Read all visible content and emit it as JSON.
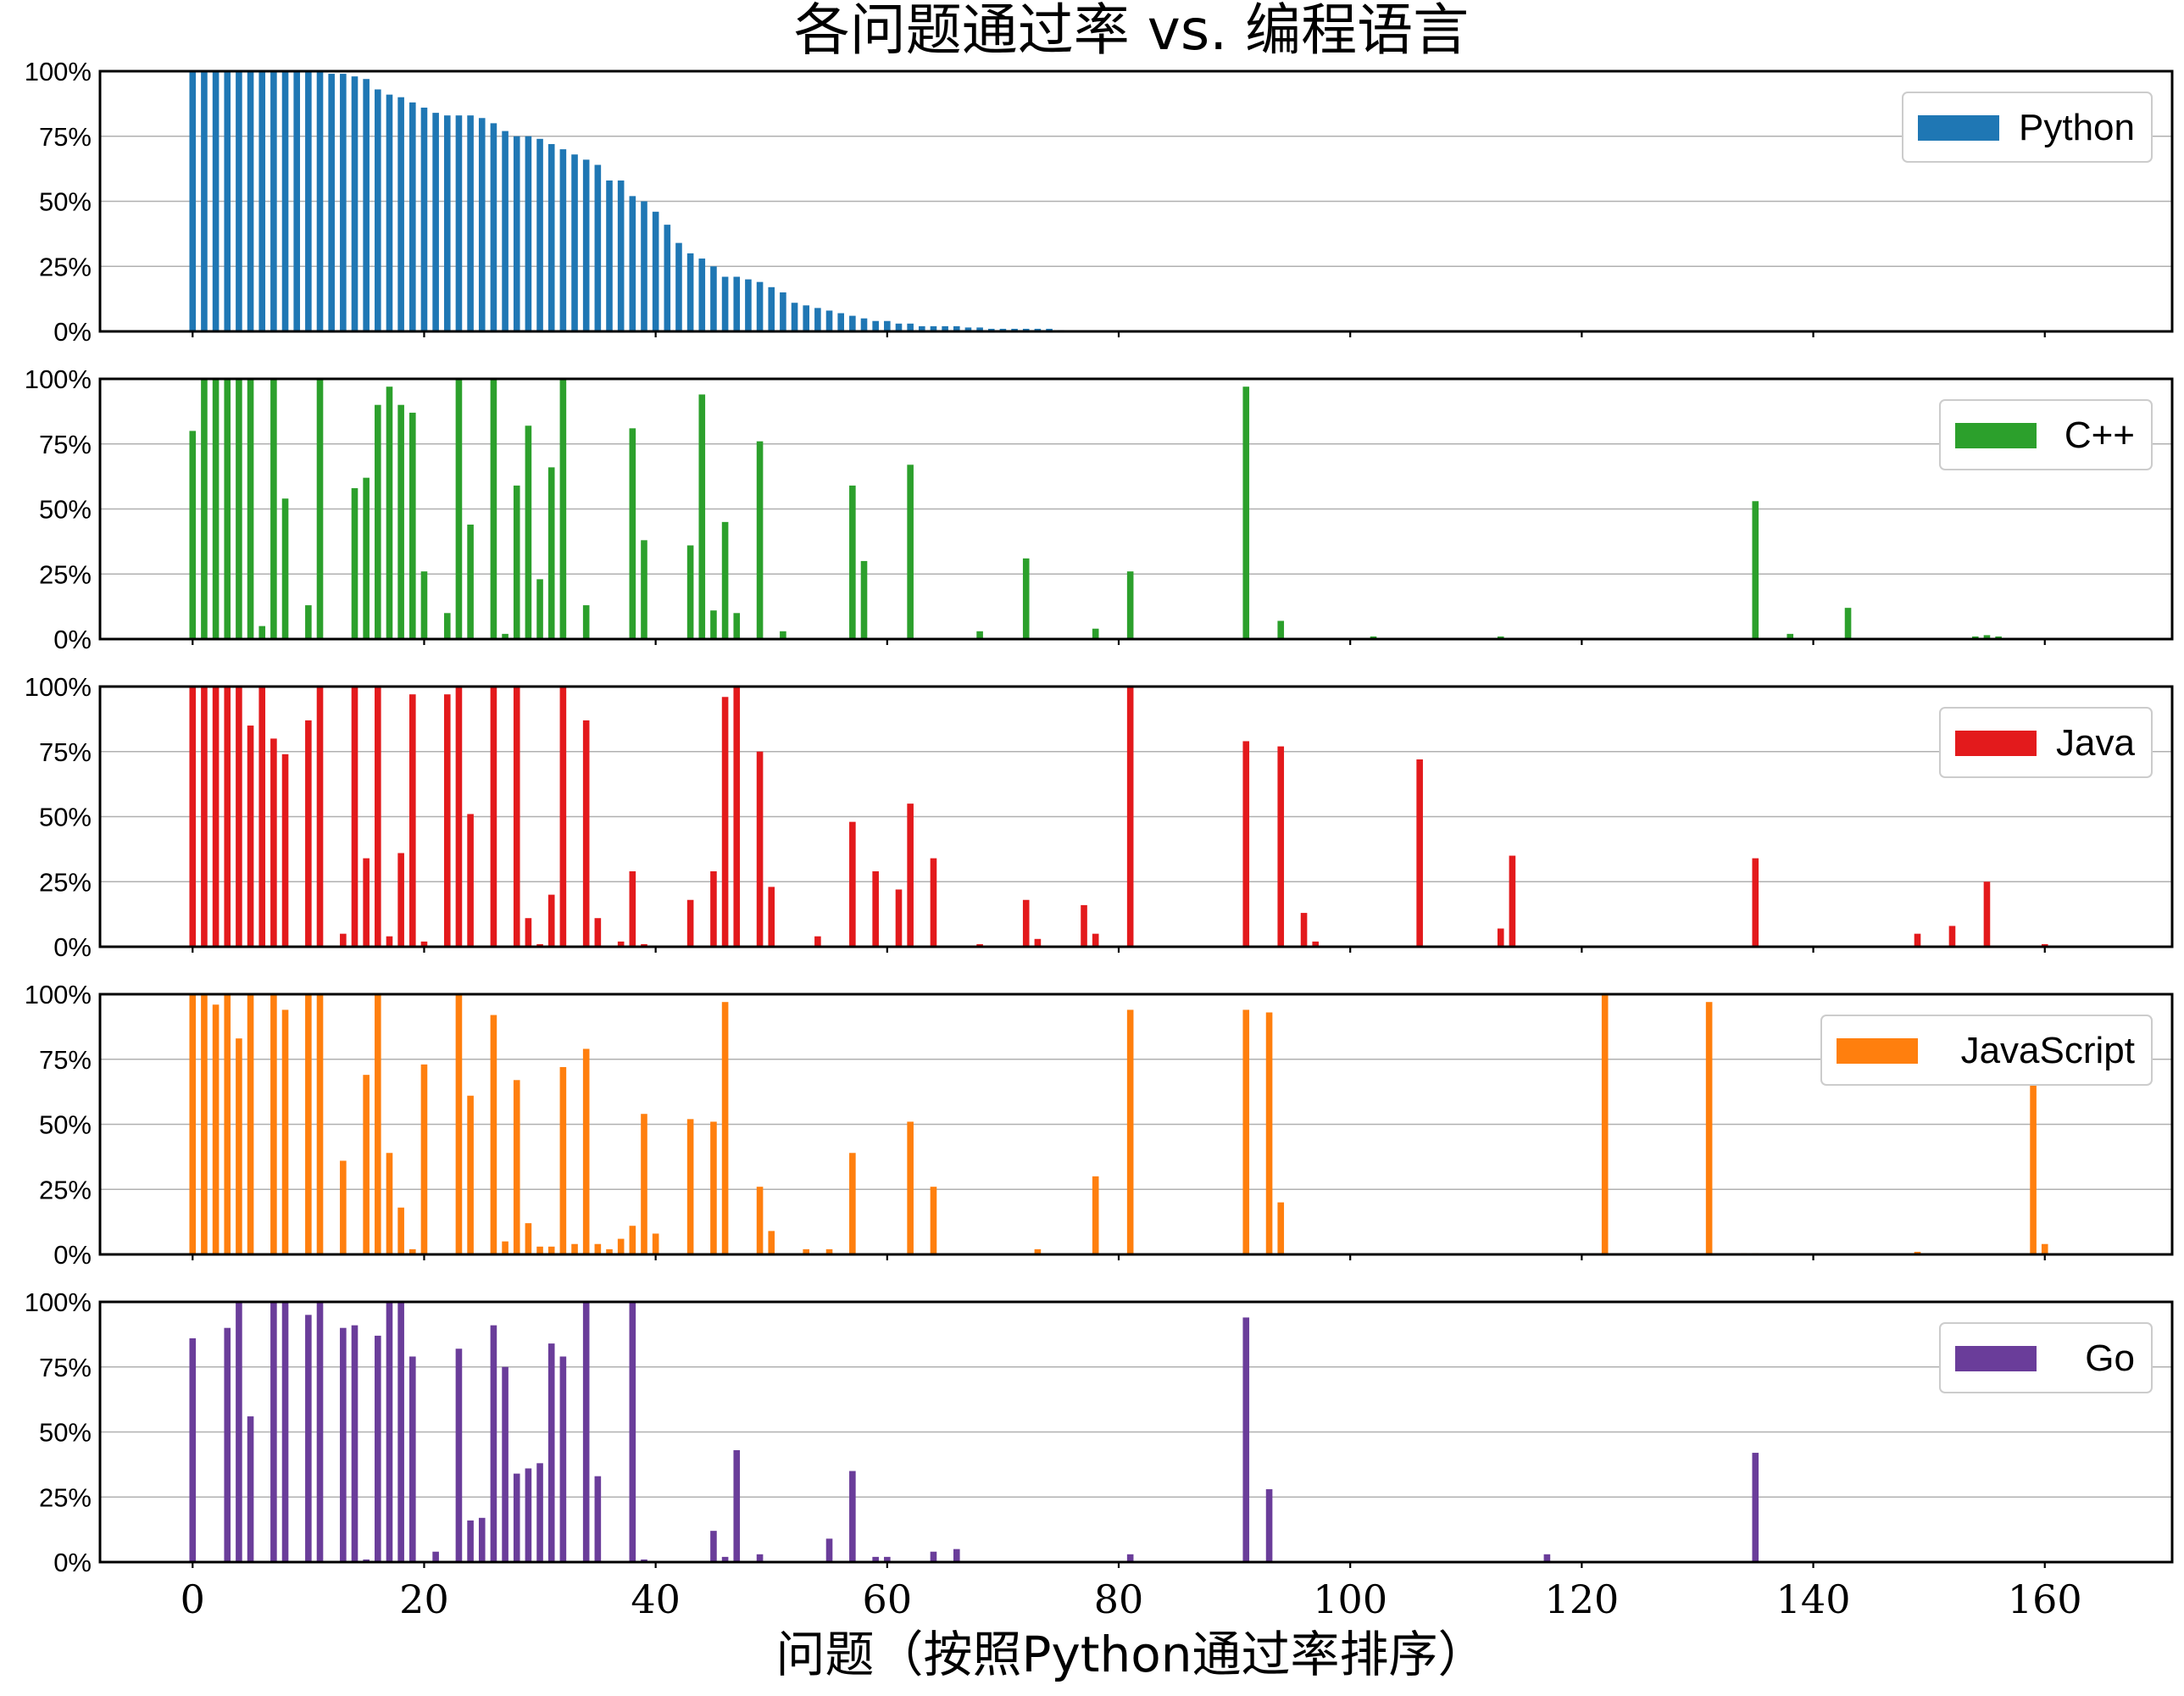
{
  "chart_data": {
    "type": "bar",
    "title": "各问题通过率 vs. 编程语言",
    "xlabel": "问题（按照Python通过率排序）",
    "ylabel": "",
    "xlim": [
      -8,
      171
    ],
    "ylim": [
      0,
      1
    ],
    "xticks": [
      0,
      20,
      40,
      60,
      80,
      100,
      120,
      140,
      160
    ],
    "xtick_labels": [
      "0",
      "20",
      "40",
      "60",
      "80",
      "100",
      "120",
      "140",
      "160"
    ],
    "yticks": [
      0,
      0.25,
      0.5,
      0.75,
      1.0
    ],
    "ytick_labels": [
      "0%",
      "25%",
      "50%",
      "75%",
      "100%"
    ],
    "grid": "horizontal",
    "legend_position": "upper right",
    "series": [
      {
        "name": "Python",
        "color": "#1f77b4",
        "points": [
          [
            0,
            1
          ],
          [
            1,
            1
          ],
          [
            2,
            1
          ],
          [
            3,
            1
          ],
          [
            4,
            1
          ],
          [
            5,
            1
          ],
          [
            6,
            1
          ],
          [
            7,
            1
          ],
          [
            8,
            1
          ],
          [
            9,
            1
          ],
          [
            10,
            1
          ],
          [
            11,
            1
          ],
          [
            12,
            0.99
          ],
          [
            13,
            0.99
          ],
          [
            14,
            0.98
          ],
          [
            15,
            0.97
          ],
          [
            16,
            0.93
          ],
          [
            17,
            0.91
          ],
          [
            18,
            0.9
          ],
          [
            19,
            0.88
          ],
          [
            20,
            0.86
          ],
          [
            21,
            0.84
          ],
          [
            22,
            0.83
          ],
          [
            23,
            0.83
          ],
          [
            24,
            0.83
          ],
          [
            25,
            0.82
          ],
          [
            26,
            0.8
          ],
          [
            27,
            0.77
          ],
          [
            28,
            0.75
          ],
          [
            29,
            0.75
          ],
          [
            30,
            0.74
          ],
          [
            31,
            0.72
          ],
          [
            32,
            0.7
          ],
          [
            33,
            0.68
          ],
          [
            34,
            0.66
          ],
          [
            35,
            0.64
          ],
          [
            36,
            0.58
          ],
          [
            37,
            0.58
          ],
          [
            38,
            0.52
          ],
          [
            39,
            0.5
          ],
          [
            40,
            0.46
          ],
          [
            41,
            0.41
          ],
          [
            42,
            0.34
          ],
          [
            43,
            0.3
          ],
          [
            44,
            0.28
          ],
          [
            45,
            0.25
          ],
          [
            46,
            0.21
          ],
          [
            47,
            0.21
          ],
          [
            48,
            0.2
          ],
          [
            49,
            0.19
          ],
          [
            50,
            0.17
          ],
          [
            51,
            0.15
          ],
          [
            52,
            0.11
          ],
          [
            53,
            0.1
          ],
          [
            54,
            0.09
          ],
          [
            55,
            0.08
          ],
          [
            56,
            0.07
          ],
          [
            57,
            0.06
          ],
          [
            58,
            0.05
          ],
          [
            59,
            0.04
          ],
          [
            60,
            0.04
          ],
          [
            61,
            0.03
          ],
          [
            62,
            0.03
          ],
          [
            63,
            0.02
          ],
          [
            64,
            0.02
          ],
          [
            65,
            0.02
          ],
          [
            66,
            0.02
          ],
          [
            67,
            0.015
          ],
          [
            68,
            0.015
          ],
          [
            69,
            0.01
          ],
          [
            70,
            0.01
          ],
          [
            71,
            0.01
          ],
          [
            72,
            0.01
          ],
          [
            73,
            0.01
          ],
          [
            74,
            0.01
          ],
          [
            75,
            0.005
          ]
        ]
      },
      {
        "name": "C++",
        "color": "#2ca02c",
        "points": [
          [
            0,
            0.8
          ],
          [
            1,
            1
          ],
          [
            2,
            1
          ],
          [
            3,
            1
          ],
          [
            4,
            1
          ],
          [
            5,
            1
          ],
          [
            6,
            0.05
          ],
          [
            7,
            1
          ],
          [
            8,
            0.54
          ],
          [
            10,
            0.13
          ],
          [
            11,
            1
          ],
          [
            14,
            0.58
          ],
          [
            15,
            0.62
          ],
          [
            16,
            0.9
          ],
          [
            17,
            0.97
          ],
          [
            18,
            0.9
          ],
          [
            19,
            0.87
          ],
          [
            20,
            0.26
          ],
          [
            22,
            0.1
          ],
          [
            23,
            1
          ],
          [
            24,
            0.44
          ],
          [
            26,
            1
          ],
          [
            27,
            0.02
          ],
          [
            28,
            0.59
          ],
          [
            29,
            0.82
          ],
          [
            30,
            0.23
          ],
          [
            31,
            0.66
          ],
          [
            32,
            1
          ],
          [
            34,
            0.13
          ],
          [
            38,
            0.81
          ],
          [
            39,
            0.38
          ],
          [
            43,
            0.36
          ],
          [
            44,
            0.94
          ],
          [
            45,
            0.11
          ],
          [
            46,
            0.45
          ],
          [
            47,
            0.1
          ],
          [
            49,
            0.76
          ],
          [
            51,
            0.03
          ],
          [
            57,
            0.59
          ],
          [
            58,
            0.3
          ],
          [
            62,
            0.67
          ],
          [
            68,
            0.03
          ],
          [
            72,
            0.31
          ],
          [
            78,
            0.04
          ],
          [
            81,
            0.26
          ],
          [
            91,
            0.97
          ],
          [
            94,
            0.07
          ],
          [
            102,
            0.01
          ],
          [
            113,
            0.01
          ],
          [
            135,
            0.53
          ],
          [
            138,
            0.02
          ],
          [
            143,
            0.12
          ],
          [
            154,
            0.01
          ],
          [
            155,
            0.015
          ],
          [
            156,
            0.01
          ]
        ]
      },
      {
        "name": "Java",
        "color": "#e31a1c",
        "points": [
          [
            0,
            1
          ],
          [
            1,
            1
          ],
          [
            2,
            1
          ],
          [
            3,
            1
          ],
          [
            4,
            1
          ],
          [
            5,
            0.85
          ],
          [
            6,
            1
          ],
          [
            7,
            0.8
          ],
          [
            8,
            0.74
          ],
          [
            10,
            0.87
          ],
          [
            11,
            1
          ],
          [
            13,
            0.05
          ],
          [
            14,
            1
          ],
          [
            15,
            0.34
          ],
          [
            16,
            1
          ],
          [
            17,
            0.04
          ],
          [
            18,
            0.36
          ],
          [
            19,
            0.97
          ],
          [
            20,
            0.02
          ],
          [
            22,
            0.97
          ],
          [
            23,
            1
          ],
          [
            24,
            0.51
          ],
          [
            26,
            1
          ],
          [
            28,
            1
          ],
          [
            29,
            0.11
          ],
          [
            30,
            0.01
          ],
          [
            31,
            0.2
          ],
          [
            32,
            1
          ],
          [
            34,
            0.87
          ],
          [
            35,
            0.11
          ],
          [
            37,
            0.02
          ],
          [
            38,
            0.29
          ],
          [
            39,
            0.01
          ],
          [
            43,
            0.18
          ],
          [
            45,
            0.29
          ],
          [
            46,
            0.96
          ],
          [
            47,
            1
          ],
          [
            49,
            0.75
          ],
          [
            50,
            0.23
          ],
          [
            54,
            0.04
          ],
          [
            57,
            0.48
          ],
          [
            59,
            0.29
          ],
          [
            61,
            0.22
          ],
          [
            62,
            0.55
          ],
          [
            64,
            0.34
          ],
          [
            68,
            0.01
          ],
          [
            72,
            0.18
          ],
          [
            73,
            0.03
          ],
          [
            77,
            0.16
          ],
          [
            78,
            0.05
          ],
          [
            81,
            1
          ],
          [
            91,
            0.79
          ],
          [
            94,
            0.77
          ],
          [
            96,
            0.13
          ],
          [
            97,
            0.02
          ],
          [
            106,
            0.72
          ],
          [
            113,
            0.07
          ],
          [
            114,
            0.35
          ],
          [
            135,
            0.34
          ],
          [
            149,
            0.05
          ],
          [
            152,
            0.08
          ],
          [
            155,
            0.25
          ],
          [
            160,
            0.01
          ]
        ]
      },
      {
        "name": "JavaScript",
        "color": "#ff7f0e",
        "points": [
          [
            0,
            1
          ],
          [
            1,
            1
          ],
          [
            2,
            0.96
          ],
          [
            3,
            1
          ],
          [
            4,
            0.83
          ],
          [
            5,
            1
          ],
          [
            7,
            1
          ],
          [
            8,
            0.94
          ],
          [
            10,
            1
          ],
          [
            11,
            1
          ],
          [
            13,
            0.36
          ],
          [
            15,
            0.69
          ],
          [
            16,
            1
          ],
          [
            17,
            0.39
          ],
          [
            18,
            0.18
          ],
          [
            19,
            0.02
          ],
          [
            20,
            0.73
          ],
          [
            23,
            1
          ],
          [
            24,
            0.61
          ],
          [
            26,
            0.92
          ],
          [
            27,
            0.05
          ],
          [
            28,
            0.67
          ],
          [
            29,
            0.12
          ],
          [
            30,
            0.03
          ],
          [
            31,
            0.03
          ],
          [
            32,
            0.72
          ],
          [
            33,
            0.04
          ],
          [
            34,
            0.79
          ],
          [
            35,
            0.04
          ],
          [
            36,
            0.02
          ],
          [
            37,
            0.06
          ],
          [
            38,
            0.11
          ],
          [
            39,
            0.54
          ],
          [
            40,
            0.08
          ],
          [
            43,
            0.52
          ],
          [
            45,
            0.51
          ],
          [
            46,
            0.97
          ],
          [
            49,
            0.26
          ],
          [
            50,
            0.09
          ],
          [
            53,
            0.02
          ],
          [
            55,
            0.02
          ],
          [
            57,
            0.39
          ],
          [
            62,
            0.51
          ],
          [
            64,
            0.26
          ],
          [
            73,
            0.02
          ],
          [
            78,
            0.3
          ],
          [
            81,
            0.94
          ],
          [
            91,
            0.94
          ],
          [
            93,
            0.93
          ],
          [
            94,
            0.2
          ],
          [
            122,
            1
          ],
          [
            131,
            0.97
          ],
          [
            134,
            0.005
          ],
          [
            135,
            0.005
          ],
          [
            149,
            0.01
          ],
          [
            159,
            0.67
          ],
          [
            160,
            0.04
          ]
        ]
      },
      {
        "name": "Go",
        "color": "#6a3d9a",
        "points": [
          [
            0,
            0.86
          ],
          [
            3,
            0.9
          ],
          [
            4,
            1
          ],
          [
            5,
            0.56
          ],
          [
            7,
            1
          ],
          [
            8,
            1
          ],
          [
            10,
            0.95
          ],
          [
            11,
            1
          ],
          [
            13,
            0.9
          ],
          [
            14,
            0.91
          ],
          [
            15,
            0.01
          ],
          [
            16,
            0.87
          ],
          [
            17,
            1
          ],
          [
            18,
            1
          ],
          [
            19,
            0.79
          ],
          [
            21,
            0.04
          ],
          [
            23,
            0.82
          ],
          [
            24,
            0.16
          ],
          [
            25,
            0.17
          ],
          [
            26,
            0.91
          ],
          [
            27,
            0.75
          ],
          [
            28,
            0.34
          ],
          [
            29,
            0.36
          ],
          [
            30,
            0.38
          ],
          [
            31,
            0.84
          ],
          [
            32,
            0.79
          ],
          [
            34,
            1
          ],
          [
            35,
            0.33
          ],
          [
            38,
            1
          ],
          [
            39,
            0.01
          ],
          [
            45,
            0.12
          ],
          [
            46,
            0.02
          ],
          [
            47,
            0.43
          ],
          [
            49,
            0.03
          ],
          [
            55,
            0.09
          ],
          [
            57,
            0.35
          ],
          [
            59,
            0.02
          ],
          [
            60,
            0.02
          ],
          [
            64,
            0.04
          ],
          [
            66,
            0.05
          ],
          [
            81,
            0.03
          ],
          [
            91,
            0.94
          ],
          [
            93,
            0.28
          ],
          [
            117,
            0.03
          ],
          [
            135,
            0.42
          ]
        ]
      }
    ]
  }
}
